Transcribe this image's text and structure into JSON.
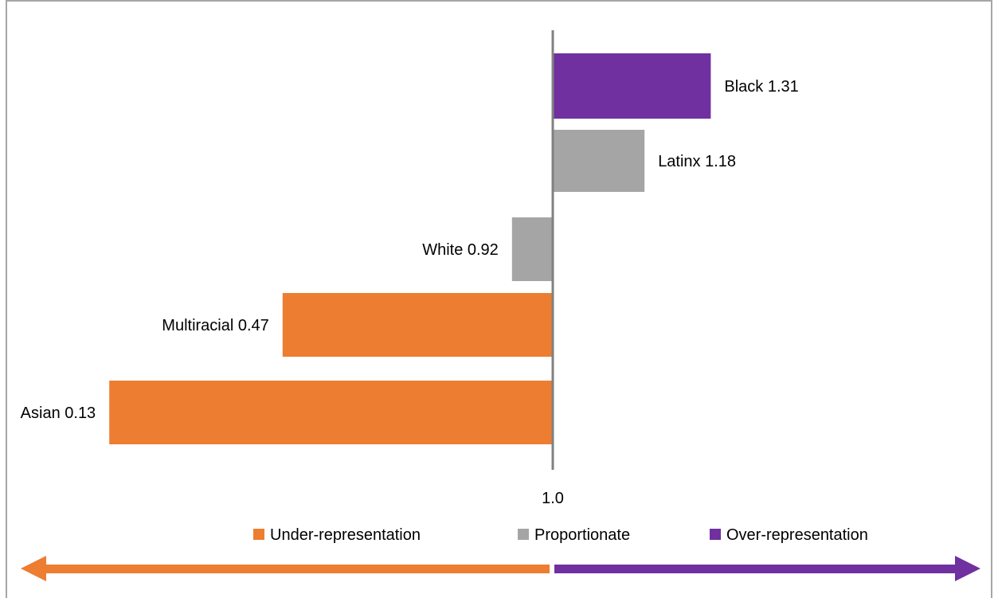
{
  "chart_data": {
    "type": "bar",
    "orientation": "horizontal",
    "reference_value": 1.0,
    "reference_label": "1.0",
    "categories": [
      "Black",
      "Latinx",
      "White",
      "Multiracial",
      "Asian"
    ],
    "values": [
      1.31,
      1.18,
      0.92,
      0.47,
      0.13
    ],
    "value_labels": [
      "Black 1.31",
      "Latinx 1.18",
      "White 0.92",
      "Multiracial 0.47",
      "Asian 0.13"
    ],
    "bar_groups": [
      "over",
      "proportionate",
      "proportionate",
      "under",
      "under"
    ],
    "legend": [
      {
        "key": "under",
        "label": "Under-representation",
        "color": "#ed7d31"
      },
      {
        "key": "proportionate",
        "label": "Proportionate",
        "color": "#a5a5a5"
      },
      {
        "key": "over",
        "label": "Over-representation",
        "color": "#7030a0"
      }
    ],
    "legend_position": "bottom",
    "arrow_colors": {
      "left": "#ed7d31",
      "right": "#7030a0"
    },
    "axis_line_color": "#808080",
    "xlabel": "",
    "ylabel": "",
    "title": ""
  }
}
